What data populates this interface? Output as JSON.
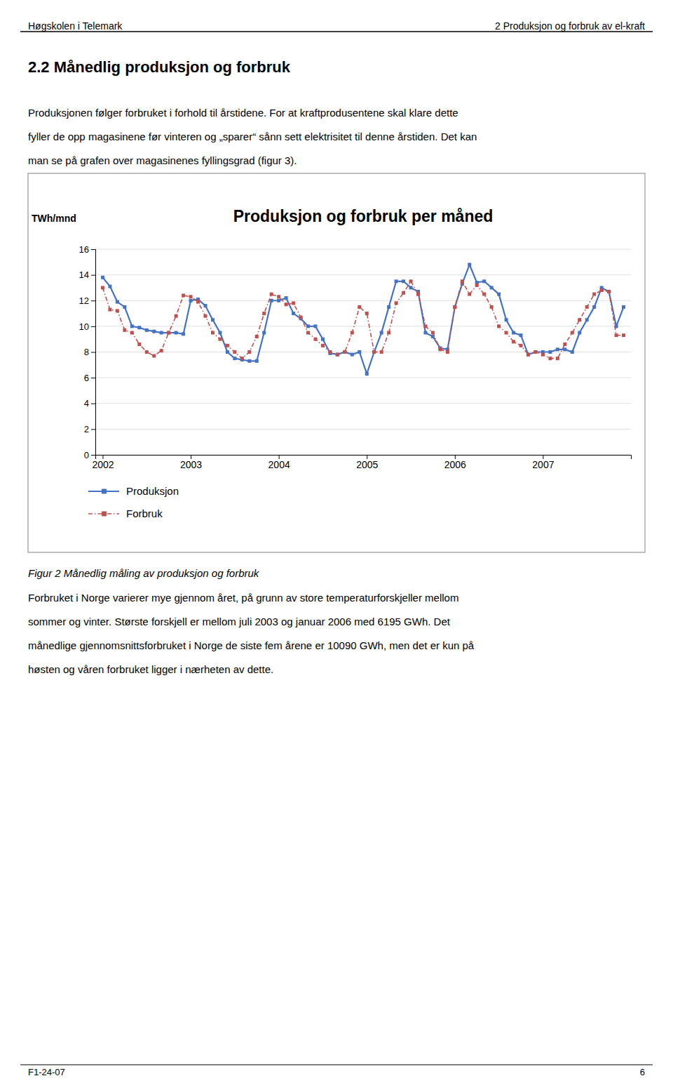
{
  "page": {
    "header_left": "Høgskolen i Telemark",
    "header_right": "2 Produksjon og forbruk av el-kraft",
    "section_title": "2.2  Månedlig produksjon og forbruk",
    "body_lines": [
      "Produksjonen følger forbruket i forhold til årstidene. For at kraftprodusentene skal klare dette",
      "fyller de opp magasinene før vinteren og „sparer“ sånn sett elektrisitet til denne årstiden. Det kan",
      "man se på grafen over magasinenes fyllingsgrad (figur 3)."
    ],
    "caption": "Figur 2 Månedlig måling av produksjon og forbruk",
    "after_lines": [
      "Forbruket i Norge varierer mye gjennom året, på grunn av store temperaturforskjeller mellom",
      "sommer og vinter. Største forskjell er mellom juli 2003 og januar 2006 med 6195 GWh. Det",
      "månedlige gjennomsnittsforbruket i Norge de siste fem årene er 10090 GWh, men det er kun på",
      "høsten og våren forbruket ligger i nærheten av dette."
    ],
    "footer_left": "F1-24-07",
    "footer_right": "6"
  },
  "chart_data": {
    "type": "line",
    "title": "Produksjon og forbruk per måned",
    "ylabel": "TWh/mnd",
    "categories": [
      "2002",
      null,
      null,
      null,
      null,
      null,
      null,
      null,
      null,
      null,
      null,
      null,
      "2003",
      null,
      null,
      null,
      null,
      null,
      null,
      null,
      null,
      null,
      null,
      null,
      "2004",
      null,
      null,
      null,
      null,
      null,
      null,
      null,
      null,
      null,
      null,
      null,
      "2005",
      null,
      null,
      null,
      null,
      null,
      null,
      null,
      null,
      null,
      null,
      null,
      "2006",
      null,
      null,
      null,
      null,
      null,
      null,
      null,
      null,
      null,
      null,
      null,
      "2007",
      null,
      null,
      null,
      null,
      null,
      null,
      null,
      null,
      null,
      null,
      null
    ],
    "series": [
      {
        "name": "Produksjon",
        "color": "#4472C4",
        "marker": "square",
        "line_style": "solid",
        "values": [
          13.8,
          13.1,
          11.9,
          11.5,
          10.0,
          9.9,
          9.7,
          9.6,
          9.5,
          9.5,
          9.5,
          9.4,
          12.0,
          12.1,
          11.6,
          10.5,
          9.5,
          8.0,
          7.5,
          7.4,
          7.3,
          7.3,
          9.5,
          12.0,
          12.0,
          12.2,
          11.0,
          10.6,
          10.0,
          10.0,
          9.0,
          7.9,
          7.8,
          8.0,
          7.8,
          8.0,
          6.3,
          8.0,
          9.5,
          11.5,
          13.5,
          13.5,
          13.0,
          12.7,
          9.5,
          9.2,
          8.3,
          8.2,
          11.5,
          13.3,
          14.8,
          13.4,
          13.5,
          13.0,
          12.5,
          10.5,
          9.5,
          9.3,
          7.8,
          8.0,
          8.0,
          8.0,
          8.2,
          8.2,
          8.0,
          9.5,
          10.5,
          11.5,
          13.0,
          12.7,
          10.0,
          11.5
        ]
      },
      {
        "name": "Forbruk",
        "color": "#C0504D",
        "marker": "square",
        "line_style": "dashdot",
        "values": [
          13.0,
          11.3,
          11.2,
          9.7,
          9.5,
          8.6,
          8.0,
          7.7,
          8.1,
          9.5,
          10.8,
          12.4,
          12.3,
          11.9,
          10.8,
          9.5,
          9.0,
          8.5,
          8.0,
          7.5,
          8.0,
          9.2,
          11.0,
          12.5,
          12.3,
          11.7,
          11.8,
          10.7,
          9.5,
          9.0,
          8.5,
          8.0,
          7.8,
          8.0,
          9.5,
          11.5,
          11.0,
          8.0,
          8.0,
          9.5,
          11.8,
          12.6,
          13.5,
          12.5,
          10.0,
          9.5,
          8.2,
          8.0,
          11.5,
          13.5,
          12.5,
          13.2,
          12.5,
          11.5,
          10.0,
          9.5,
          8.8,
          8.5,
          7.8,
          8.0,
          7.8,
          7.5,
          7.5,
          8.6,
          9.5,
          10.5,
          11.5,
          12.5,
          12.8,
          12.7,
          9.3,
          9.3
        ]
      }
    ],
    "ylim": [
      0,
      16
    ],
    "yticks": [
      0,
      2,
      4,
      6,
      8,
      10,
      12,
      14,
      16
    ],
    "grid": true,
    "legend": "bottom"
  }
}
